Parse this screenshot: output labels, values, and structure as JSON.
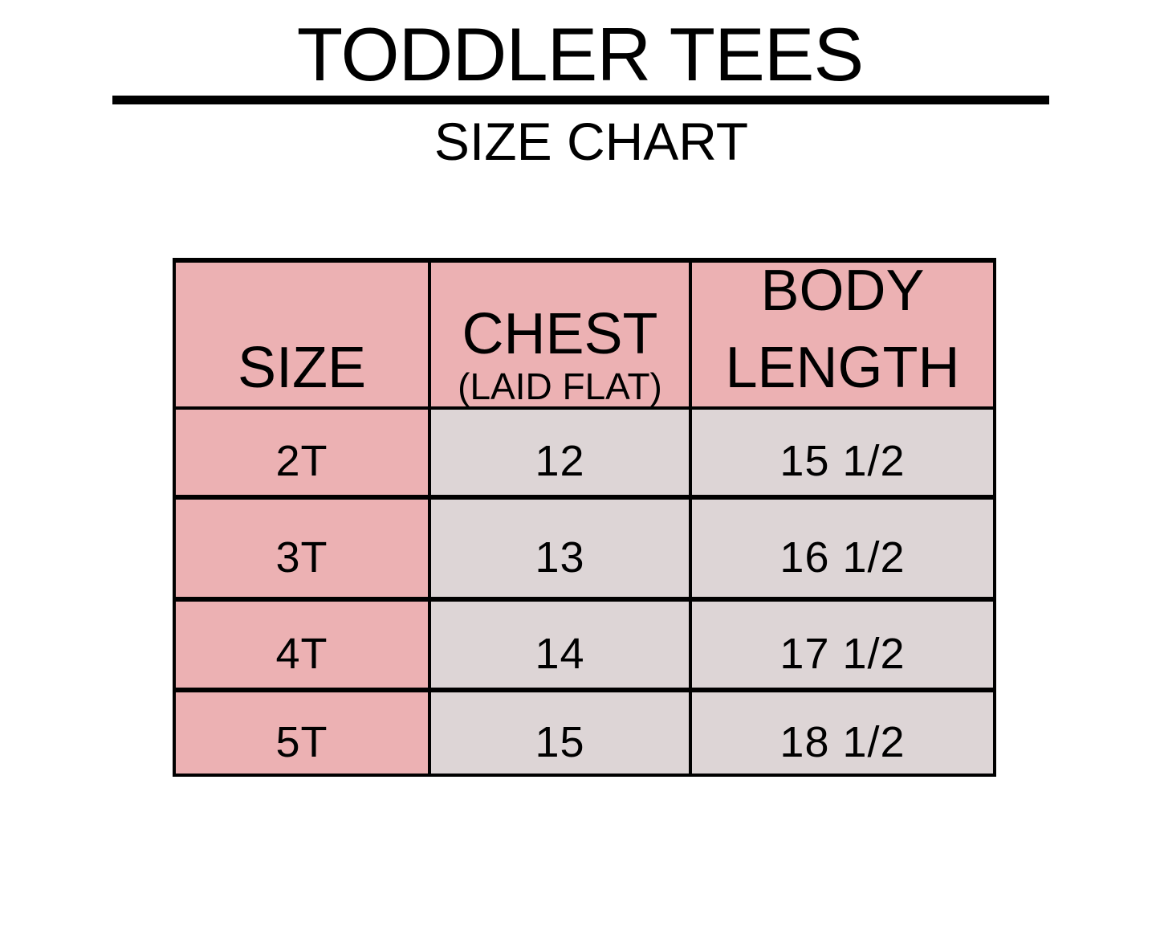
{
  "title": "TODDLER TEES",
  "subtitle": "SIZE CHART",
  "colors": {
    "header": "#ecb1b3",
    "size_column": "#ecb1b3",
    "value_cells": "#ddd5d6",
    "border": "#000000"
  },
  "table": {
    "headers": {
      "size": "SIZE",
      "chest": "CHEST",
      "chest_note": "(LAID FLAT)",
      "body_line1": "BODY",
      "body_line2": "LENGTH"
    },
    "rows": [
      {
        "size": "2T",
        "chest": "12",
        "body_length": "15 1/2"
      },
      {
        "size": "3T",
        "chest": "13",
        "body_length": "16 1/2"
      },
      {
        "size": "4T",
        "chest": "14",
        "body_length": "17 1/2"
      },
      {
        "size": "5T",
        "chest": "15",
        "body_length": "18 1/2"
      }
    ]
  }
}
